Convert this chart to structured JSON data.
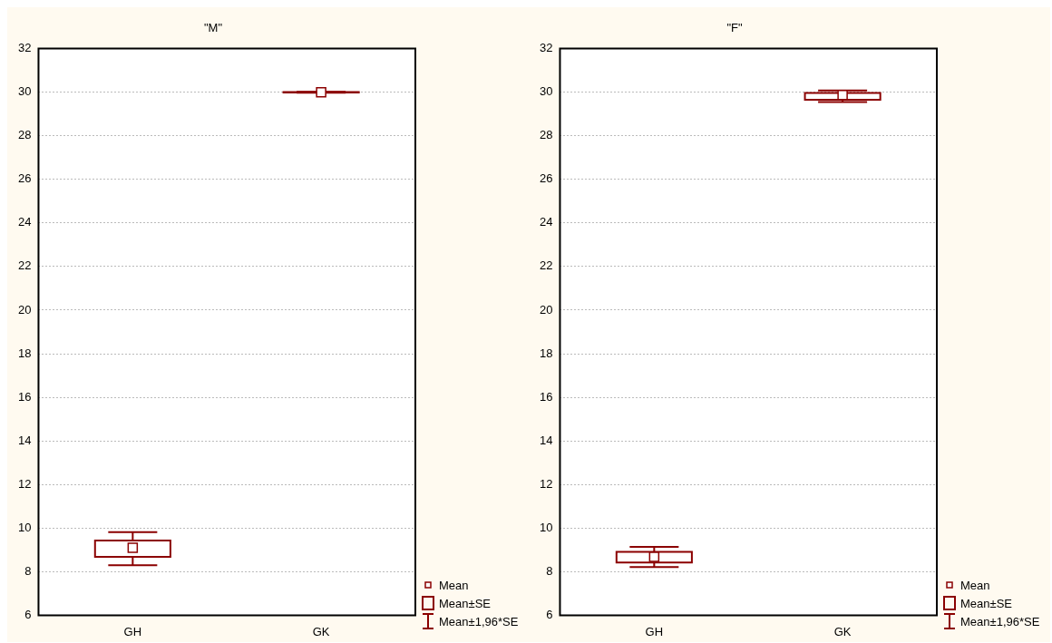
{
  "chart_data": [
    {
      "type": "box",
      "title": "\"M\"",
      "categories": [
        "GH",
        "GK"
      ],
      "color": "#8b0000",
      "boxes": [
        {
          "low": 8.3,
          "q1": 8.68,
          "q3": 9.43,
          "high": 9.81,
          "mean": 9.1
        },
        {
          "low": 29.98,
          "q1": 29.99,
          "q3": 30.01,
          "high": 30.02,
          "mean": 30.0
        }
      ],
      "ylim": [
        6,
        32
      ],
      "yticks": [
        6,
        8,
        10,
        12,
        14,
        16,
        18,
        20,
        22,
        24,
        26,
        28,
        30,
        32
      ],
      "grid": "y",
      "annotations": [
        "Mean",
        "Mean±SE",
        "Mean±1,96*SE"
      ]
    },
    {
      "type": "box",
      "title": "\"F\"",
      "categories": [
        "GH",
        "GK"
      ],
      "color": "#8b0000",
      "boxes": [
        {
          "low": 8.21,
          "q1": 8.42,
          "q3": 8.91,
          "high": 9.14,
          "mean": 8.68
        },
        {
          "low": 29.55,
          "q1": 29.65,
          "q3": 29.96,
          "high": 30.08,
          "mean": 29.87
        }
      ],
      "ylim": [
        6,
        32
      ],
      "yticks": [
        6,
        8,
        10,
        12,
        14,
        16,
        18,
        20,
        22,
        24,
        26,
        28,
        30,
        32
      ],
      "grid": "y",
      "annotations": [
        "Mean",
        "Mean±SE",
        "Mean±1,96*SE"
      ]
    }
  ]
}
